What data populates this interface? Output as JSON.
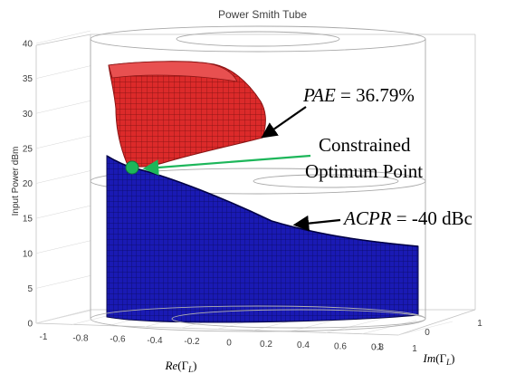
{
  "chart_data": {
    "type": "surface-3d",
    "title": "Power Smith Tube",
    "zlabel": "Input Power dBm",
    "xlabel": "Re(Γ_L)",
    "ylabel": "Im(Γ_L)",
    "zlim": [
      0,
      40
    ],
    "z_ticks": [
      "0",
      "5",
      "10",
      "15",
      "20",
      "25",
      "30",
      "35",
      "40"
    ],
    "x_ticks": [
      "-1",
      "-0.8",
      "-0.6",
      "-0.4",
      "-0.2",
      "0",
      "0.2",
      "0.4",
      "0.6",
      "0.8",
      "1"
    ],
    "y_ticks": [
      "-1",
      "0",
      "1"
    ],
    "surfaces": [
      {
        "name": "PAE",
        "color": "#dc2a2a",
        "zlim": [
          20,
          37
        ],
        "label": {
          "italic": "PAE",
          "rest": " = 36.79%"
        }
      },
      {
        "name": "ACPR",
        "color": "#1a1ab4",
        "zlim": [
          0,
          24
        ],
        "label": {
          "italic": "ACPR",
          "rest": " = -40 dBc"
        }
      }
    ],
    "optimum_point": {
      "z": 22,
      "color": "#1db65a",
      "label_lines": [
        "Constrained",
        "Optimum Point"
      ]
    },
    "grid": true
  }
}
